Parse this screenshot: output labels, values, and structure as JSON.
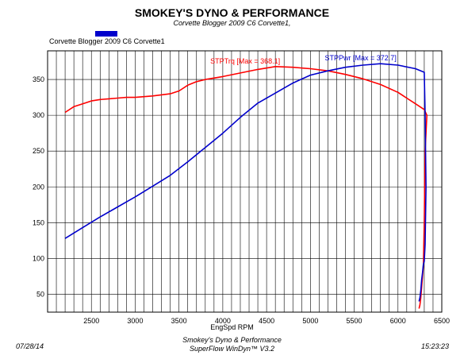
{
  "title": "SMOKEY'S DYNO & PERFORMANCE",
  "subtitle": "Corvette Blogger 2009 C6 Corvette1,",
  "legend": {
    "label": "Corvette Blogger 2009 C6 Corvette1",
    "color": "#0000cc"
  },
  "footer": {
    "date": "07/28/14",
    "time": "15:23:23",
    "line1": "Smokey's Dyno & Performance",
    "line2": "SuperFlow WinDyn™ V3.2"
  },
  "chart_data": {
    "type": "line",
    "xlabel": "EngSpd RPM",
    "ylabel": "",
    "xlim": [
      2000,
      6500
    ],
    "ylim": [
      25,
      390
    ],
    "xticks": [
      2500,
      3000,
      3500,
      4000,
      4500,
      5000,
      5500,
      6000,
      6500
    ],
    "yticks": [
      50,
      100,
      150,
      200,
      250,
      300,
      350
    ],
    "grid": true,
    "series": [
      {
        "name": "STPTrq",
        "annotation": "STPTrq [Max = 368.1]",
        "color": "#ff0000",
        "x": [
          2200,
          2300,
          2400,
          2500,
          2600,
          2700,
          2800,
          2900,
          3000,
          3200,
          3400,
          3500,
          3600,
          3700,
          3800,
          4000,
          4200,
          4400,
          4600,
          4800,
          5000,
          5200,
          5400,
          5600,
          5800,
          6000,
          6100,
          6200,
          6300,
          6330,
          6310,
          6300,
          6290,
          6280,
          6270,
          6260,
          6250,
          6240
        ],
        "y": [
          304,
          312,
          316,
          320,
          322,
          323,
          324,
          325,
          325,
          327,
          330,
          334,
          342,
          347,
          350,
          354,
          359,
          364,
          368,
          367,
          365,
          362,
          357,
          351,
          343,
          332,
          324,
          316,
          308,
          300,
          250,
          150,
          90,
          75,
          60,
          45,
          35,
          30
        ]
      },
      {
        "name": "STPPwr",
        "annotation": "STPPwr [Max = 372.7]",
        "color": "#0000cc",
        "x": [
          2200,
          2400,
          2600,
          2800,
          3000,
          3200,
          3400,
          3600,
          3800,
          4000,
          4200,
          4400,
          4600,
          4800,
          5000,
          5200,
          5400,
          5600,
          5800,
          6000,
          6200,
          6300,
          6310,
          6320,
          6310,
          6300,
          6290,
          6280,
          6270,
          6260,
          6250,
          6240
        ],
        "y": [
          128,
          143,
          158,
          172,
          186,
          201,
          216,
          235,
          255,
          275,
          297,
          317,
          331,
          345,
          356,
          362,
          367,
          370,
          372,
          370,
          365,
          360,
          300,
          200,
          120,
          96,
          92,
          80,
          70,
          55,
          45,
          40
        ]
      }
    ]
  }
}
